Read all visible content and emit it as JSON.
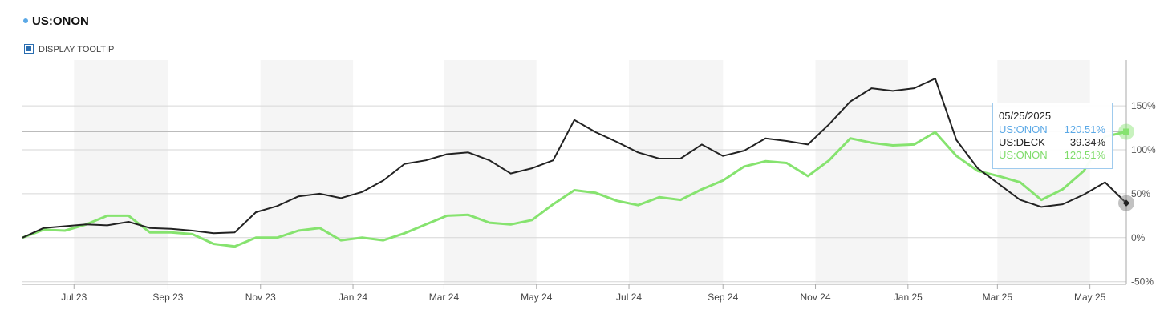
{
  "header": {
    "title": "US:ONON",
    "toggle": "DISPLAY TOOLTIP"
  },
  "chart_data": {
    "type": "line",
    "x": [
      "05/28/2023",
      "06/11/2023",
      "06/25/2023",
      "07/09/2023",
      "07/23/2023",
      "08/06/2023",
      "08/20/2023",
      "09/03/2023",
      "09/17/2023",
      "10/01/2023",
      "10/15/2023",
      "10/29/2023",
      "11/12/2023",
      "11/26/2023",
      "12/10/2023",
      "12/24/2023",
      "01/07/2024",
      "01/21/2024",
      "02/04/2024",
      "02/18/2024",
      "03/03/2024",
      "03/17/2024",
      "03/31/2024",
      "04/14/2024",
      "04/28/2024",
      "05/12/2024",
      "05/26/2024",
      "06/09/2024",
      "06/23/2024",
      "07/07/2024",
      "07/21/2024",
      "08/04/2024",
      "08/18/2024",
      "09/01/2024",
      "09/15/2024",
      "09/29/2024",
      "10/13/2024",
      "10/27/2024",
      "11/10/2024",
      "11/24/2024",
      "12/08/2024",
      "12/22/2024",
      "01/05/2025",
      "01/19/2025",
      "02/02/2025",
      "02/16/2025",
      "03/02/2025",
      "03/16/2025",
      "03/30/2025",
      "04/13/2025",
      "04/27/2025",
      "05/11/2025",
      "05/25/2025"
    ],
    "series": [
      {
        "name": "US:DECK",
        "color": "#222222",
        "values": [
          0,
          11,
          13,
          15,
          14,
          18,
          11,
          10,
          8,
          5,
          6,
          29,
          36,
          47,
          50,
          45,
          52,
          65,
          84,
          88,
          95,
          97,
          88,
          73,
          79,
          88,
          134,
          120,
          109,
          97,
          90,
          90,
          106,
          93,
          99,
          113,
          110,
          106,
          129,
          155,
          170,
          167,
          170,
          181,
          111,
          79,
          61,
          43,
          35,
          38,
          49,
          63,
          39.34
        ]
      },
      {
        "name": "US:ONON",
        "color": "#86e36f",
        "values": [
          0,
          9,
          8,
          15,
          25,
          25,
          6,
          6,
          4,
          -7,
          -10,
          0,
          0,
          8,
          11,
          -3,
          0,
          -3,
          5,
          15,
          25,
          26,
          17,
          15,
          20,
          38,
          54,
          51,
          42,
          37,
          46,
          43,
          55,
          65,
          81,
          87,
          85,
          70,
          88,
          113,
          108,
          105,
          106,
          120,
          93,
          76,
          70,
          63,
          43,
          55,
          76,
          115,
          120.51
        ]
      }
    ],
    "xlim": [
      "05/28/2023",
      "05/25/2025"
    ],
    "xticks": [
      {
        "value": "07/01/2023",
        "label": "Jul 23"
      },
      {
        "value": "09/01/2023",
        "label": "Sep 23"
      },
      {
        "value": "11/01/2023",
        "label": "Nov 23"
      },
      {
        "value": "01/01/2024",
        "label": "Jan 24"
      },
      {
        "value": "03/01/2024",
        "label": "Mar 24"
      },
      {
        "value": "05/01/2024",
        "label": "May 24"
      },
      {
        "value": "07/01/2024",
        "label": "Jul 24"
      },
      {
        "value": "09/01/2024",
        "label": "Sep 24"
      },
      {
        "value": "11/01/2024",
        "label": "Nov 24"
      },
      {
        "value": "01/01/2025",
        "label": "Jan 25"
      },
      {
        "value": "03/01/2025",
        "label": "Mar 25"
      },
      {
        "value": "05/01/2025",
        "label": "May 25"
      }
    ],
    "ylim": [
      -53,
      202
    ],
    "yticks": [
      {
        "value": -50,
        "label": "-50%"
      },
      {
        "value": 0,
        "label": "0%"
      },
      {
        "value": 50,
        "label": "50%"
      },
      {
        "value": 100,
        "label": "100%"
      },
      {
        "value": 150,
        "label": "150%"
      }
    ],
    "grid": true,
    "tooltip": {
      "date": "05/25/2025",
      "rows": [
        {
          "name": "US:ONON",
          "value": "120.51%",
          "color": "#5aa8e6"
        },
        {
          "name": "US:DECK",
          "value": "39.34%",
          "color": "#222222"
        },
        {
          "name": "US:ONON",
          "value": "120.51%",
          "color": "#7fdc6a"
        }
      ]
    }
  }
}
